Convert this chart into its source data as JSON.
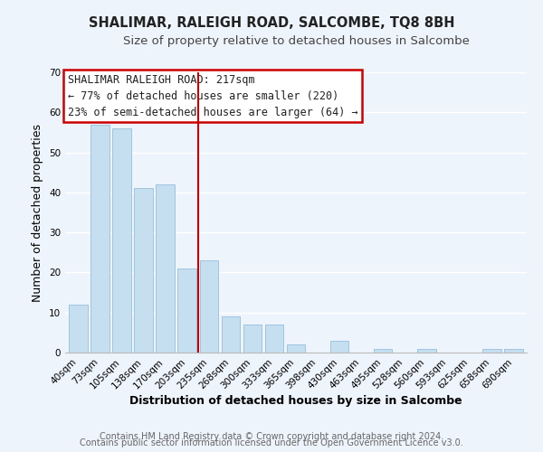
{
  "title": "SHALIMAR, RALEIGH ROAD, SALCOMBE, TQ8 8BH",
  "subtitle": "Size of property relative to detached houses in Salcombe",
  "xlabel": "Distribution of detached houses by size in Salcombe",
  "ylabel": "Number of detached properties",
  "bar_labels": [
    "40sqm",
    "73sqm",
    "105sqm",
    "138sqm",
    "170sqm",
    "203sqm",
    "235sqm",
    "268sqm",
    "300sqm",
    "333sqm",
    "365sqm",
    "398sqm",
    "430sqm",
    "463sqm",
    "495sqm",
    "528sqm",
    "560sqm",
    "593sqm",
    "625sqm",
    "658sqm",
    "690sqm"
  ],
  "bar_values": [
    12,
    57,
    56,
    41,
    42,
    21,
    23,
    9,
    7,
    7,
    2,
    0,
    3,
    0,
    1,
    0,
    1,
    0,
    0,
    1,
    1
  ],
  "bar_color": "#c5dff0",
  "bar_edge_color": "#a0c4e0",
  "ylim": [
    0,
    70
  ],
  "yticks": [
    0,
    10,
    20,
    30,
    40,
    50,
    60,
    70
  ],
  "annotation_line1": "SHALIMAR RALEIGH ROAD: 217sqm",
  "annotation_line2": "← 77% of detached houses are smaller (220)",
  "annotation_line3": "23% of semi-detached houses are larger (64) →",
  "annotation_box_color": "#ffffff",
  "annotation_box_edge_color": "#cc0000",
  "vline_x": 5.5,
  "vline_color": "#cc0000",
  "footer_line1": "Contains HM Land Registry data © Crown copyright and database right 2024.",
  "footer_line2": "Contains public sector information licensed under the Open Government Licence v3.0.",
  "background_color": "#eef4fb",
  "grid_color": "#ffffff",
  "title_fontsize": 10.5,
  "subtitle_fontsize": 9.5,
  "label_fontsize": 9,
  "tick_fontsize": 7.5,
  "annotation_fontsize": 8.5,
  "footer_fontsize": 7
}
